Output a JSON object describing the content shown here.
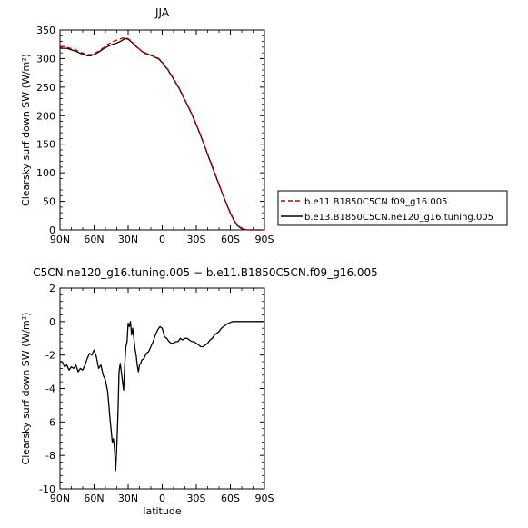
{
  "chart_data": [
    {
      "type": "line",
      "title": "JJA",
      "xlabel": "",
      "ylabel": "Clearsky surf down SW (W/m²)",
      "xlim": [
        90,
        -90
      ],
      "ylim": [
        0,
        350
      ],
      "x_ticks": [
        90,
        60,
        30,
        0,
        -30,
        -60,
        -90
      ],
      "x_tick_labels": [
        "90N",
        "60N",
        "30N",
        "0",
        "30S",
        "60S",
        "90S"
      ],
      "y_ticks": [
        0,
        50,
        100,
        150,
        200,
        250,
        300,
        350
      ],
      "grid": false,
      "legend": {
        "placement": "right",
        "entries": [
          "b.e11.B1850C5CN.f09_g16.005",
          "b.e13.B1850C5CN.ne120_g16.tuning.005"
        ]
      },
      "series": [
        {
          "name": "b.e11.B1850C5CN.f09_g16.005",
          "color": "#cc0000",
          "dash": "dashed",
          "x": [
            90,
            87,
            84,
            81,
            78,
            75,
            72,
            69,
            66,
            63,
            60,
            57,
            54,
            51,
            48,
            45,
            42,
            39,
            36,
            33,
            30,
            27,
            24,
            21,
            18,
            15,
            12,
            9,
            6,
            3,
            0,
            -5,
            -10,
            -15,
            -20,
            -25,
            -30,
            -35,
            -40,
            -45,
            -50,
            -55,
            -60,
            -63,
            -66,
            -69,
            -72,
            -75,
            -80,
            -85,
            -90
          ],
          "y": [
            321,
            321,
            320,
            318,
            317,
            314,
            311,
            309,
            307,
            307,
            309,
            312,
            316,
            320,
            325,
            328,
            331,
            333,
            335,
            337,
            335,
            330,
            324,
            318,
            313,
            310,
            308,
            306,
            303,
            300,
            294,
            281,
            265,
            248,
            228,
            208,
            185,
            160,
            133,
            107,
            80,
            54,
            30,
            18,
            9,
            4,
            1,
            0,
            0,
            0,
            0
          ]
        },
        {
          "name": "b.e13.B1850C5CN.ne120_g16.tuning.005",
          "color": "#000000",
          "dash": "solid",
          "x": [
            90,
            87,
            84,
            81,
            78,
            75,
            72,
            69,
            66,
            63,
            60,
            57,
            54,
            51,
            48,
            45,
            42,
            39,
            36,
            33,
            30,
            27,
            24,
            21,
            18,
            15,
            12,
            9,
            6,
            3,
            0,
            -5,
            -10,
            -15,
            -20,
            -25,
            -30,
            -35,
            -40,
            -45,
            -50,
            -55,
            -60,
            -63,
            -66,
            -69,
            -72,
            -75,
            -80,
            -85,
            -90
          ],
          "y": [
            318,
            318,
            318,
            316,
            314,
            312,
            309,
            307,
            305,
            305,
            307,
            310,
            314,
            318,
            321,
            324,
            326,
            328,
            331,
            335,
            334,
            329,
            323,
            318,
            313,
            309,
            307,
            305,
            302,
            299,
            293,
            280,
            264,
            247,
            227,
            207,
            184,
            159,
            132,
            105,
            79,
            53,
            29,
            17,
            8,
            3,
            1,
            0,
            0,
            0,
            0
          ]
        }
      ]
    },
    {
      "type": "line",
      "title": "C5CN.ne120_g16.tuning.005 − b.e11.B1850C5CN.f09_g16.005",
      "xlabel": "latitude",
      "ylabel": "Clearsky surf down SW (W/m²)",
      "xlim": [
        90,
        -90
      ],
      "ylim": [
        -10,
        2
      ],
      "x_ticks": [
        90,
        60,
        30,
        0,
        -30,
        -60,
        -90
      ],
      "x_tick_labels": [
        "90N",
        "60N",
        "30N",
        "0",
        "30S",
        "60S",
        "90S"
      ],
      "y_ticks": [
        -10,
        -8,
        -6,
        -4,
        -2,
        0,
        2
      ],
      "grid": false,
      "series": [
        {
          "color": "#000000",
          "dash": "solid",
          "x": [
            90,
            88,
            86,
            84,
            82,
            80,
            78,
            76,
            74,
            72,
            70,
            68,
            66,
            64,
            62,
            60,
            58,
            56,
            54,
            52,
            50,
            48,
            47,
            46,
            45,
            44,
            43,
            42,
            41,
            40,
            39,
            38,
            37,
            36,
            35,
            34,
            33,
            32,
            31,
            30,
            29,
            28,
            27,
            26,
            25,
            24,
            23,
            22,
            21,
            20,
            19,
            18,
            16,
            14,
            12,
            10,
            8,
            6,
            4,
            2,
            0,
            -2,
            -4,
            -6,
            -8,
            -10,
            -12,
            -14,
            -16,
            -18,
            -20,
            -22,
            -24,
            -26,
            -28,
            -30,
            -32,
            -34,
            -36,
            -38,
            -40,
            -42,
            -44,
            -46,
            -48,
            -50,
            -52,
            -54,
            -56,
            -58,
            -60,
            -62,
            -64,
            -66,
            -68,
            -70,
            -75,
            -80,
            -85,
            -90
          ],
          "y": [
            -2.4,
            -2.4,
            -2.7,
            -2.6,
            -2.9,
            -2.7,
            -2.8,
            -2.6,
            -3.0,
            -2.8,
            -2.9,
            -2.6,
            -2.2,
            -1.9,
            -2.0,
            -1.7,
            -2.1,
            -2.8,
            -2.6,
            -3.2,
            -3.5,
            -4.2,
            -5.0,
            -5.8,
            -6.5,
            -7.2,
            -7.0,
            -7.6,
            -8.9,
            -7.5,
            -5.5,
            -3.0,
            -2.5,
            -3.0,
            -3.6,
            -4.1,
            -2.5,
            -1.5,
            -1.2,
            -0.1,
            -0.3,
            0.0,
            -0.8,
            -0.4,
            -1.0,
            -1.6,
            -2.0,
            -2.6,
            -3.0,
            -2.6,
            -2.5,
            -2.3,
            -2.2,
            -1.9,
            -1.8,
            -1.5,
            -1.2,
            -0.8,
            -0.5,
            -0.3,
            -0.4,
            -0.9,
            -1.0,
            -1.2,
            -1.3,
            -1.3,
            -1.2,
            -1.2,
            -1.0,
            -1.1,
            -1.0,
            -1.0,
            -1.1,
            -1.2,
            -1.2,
            -1.3,
            -1.4,
            -1.5,
            -1.5,
            -1.4,
            -1.3,
            -1.1,
            -1.0,
            -0.8,
            -0.7,
            -0.6,
            -0.4,
            -0.3,
            -0.2,
            -0.1,
            -0.05,
            0.0,
            0.0,
            0.0,
            0.0,
            0.0,
            0.0,
            0.0,
            0.0,
            0.0
          ]
        }
      ]
    }
  ]
}
